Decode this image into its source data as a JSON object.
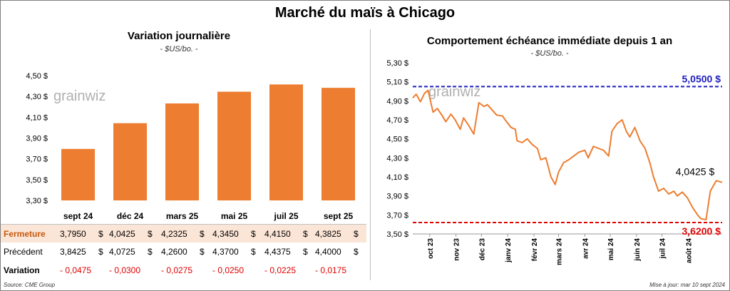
{
  "title": "Marché du maïs à Chicago",
  "left": {
    "title": "Variation journalière",
    "subtitle": "- $US/bo. -"
  },
  "right": {
    "title": "Comportement échéance immédiate depuis 1 an",
    "subtitle": "- $US/bo. -"
  },
  "watermark": "grainwiz",
  "colors": {
    "bar": "#ed7d31",
    "line": "#ed7d31",
    "high": "#1f1fbf",
    "low": "#e00000",
    "fermeture_bg": "#fbe5d6"
  },
  "table": {
    "rows": [
      {
        "label": "Fermeture",
        "values": [
          "3,7950",
          "4,0425",
          "4,2325",
          "4,3450",
          "4,4150",
          "4,3825"
        ],
        "unit": "$"
      },
      {
        "label": "Précédent",
        "values": [
          "3,8425",
          "4,0725",
          "4,2600",
          "4,3700",
          "4,4375",
          "4,4000"
        ],
        "unit": "$"
      },
      {
        "label": "Variation",
        "values": [
          "- 0,0475",
          "- 0,0300",
          "- 0,0275",
          "- 0,0250",
          "- 0,0225",
          "- 0,0175"
        ]
      }
    ]
  },
  "footer": {
    "source": "Source: CME Group",
    "updated": "Mise à jour: mar 10 sept 2024"
  },
  "chart_data": [
    {
      "type": "bar",
      "categories": [
        "sept 24",
        "déc 24",
        "mars 25",
        "mai 25",
        "juil 25",
        "sept 25"
      ],
      "values": [
        3.795,
        4.0425,
        4.2325,
        4.345,
        4.415,
        4.3825
      ],
      "ylim": [
        3.3,
        4.5
      ],
      "yticks": [
        3.3,
        3.5,
        3.7,
        3.9,
        4.1,
        4.3,
        4.5
      ],
      "ytick_labels": [
        "3,30 $",
        "3,50 $",
        "3,70 $",
        "3,90 $",
        "4,10 $",
        "4,30 $",
        "4,50 $"
      ],
      "grid": false
    },
    {
      "type": "line",
      "x": [
        "2023-09-11",
        "2023-09-15",
        "2023-09-20",
        "2023-09-25",
        "2023-09-29",
        "2023-10-05",
        "2023-10-10",
        "2023-10-16",
        "2023-10-20",
        "2023-10-26",
        "2023-10-31",
        "2023-11-06",
        "2023-11-10",
        "2023-11-16",
        "2023-11-22",
        "2023-11-28",
        "2023-12-04",
        "2023-12-08",
        "2023-12-14",
        "2023-12-19",
        "2023-12-26",
        "2023-12-29",
        "2024-01-05",
        "2024-01-10",
        "2024-01-12",
        "2024-01-18",
        "2024-01-24",
        "2024-01-30",
        "2024-02-05",
        "2024-02-09",
        "2024-02-15",
        "2024-02-21",
        "2024-02-26",
        "2024-03-01",
        "2024-03-07",
        "2024-03-13",
        "2024-03-19",
        "2024-03-25",
        "2024-04-01",
        "2024-04-05",
        "2024-04-11",
        "2024-04-17",
        "2024-04-23",
        "2024-04-29",
        "2024-05-03",
        "2024-05-09",
        "2024-05-15",
        "2024-05-20",
        "2024-05-24",
        "2024-05-30",
        "2024-06-05",
        "2024-06-11",
        "2024-06-17",
        "2024-06-21",
        "2024-06-27",
        "2024-07-03",
        "2024-07-09",
        "2024-07-15",
        "2024-07-19",
        "2024-07-25",
        "2024-07-31",
        "2024-08-06",
        "2024-08-12",
        "2024-08-16",
        "2024-08-22",
        "2024-08-27",
        "2024-09-03",
        "2024-09-10"
      ],
      "y": [
        4.93,
        4.97,
        4.89,
        4.98,
        5.01,
        4.78,
        4.82,
        4.74,
        4.68,
        4.76,
        4.7,
        4.6,
        4.72,
        4.64,
        4.55,
        4.88,
        4.84,
        4.86,
        4.8,
        4.75,
        4.74,
        4.7,
        4.62,
        4.6,
        4.48,
        4.46,
        4.5,
        4.44,
        4.4,
        4.28,
        4.3,
        4.1,
        4.02,
        4.15,
        4.25,
        4.28,
        4.32,
        4.36,
        4.38,
        4.3,
        4.42,
        4.4,
        4.38,
        4.32,
        4.58,
        4.66,
        4.7,
        4.58,
        4.52,
        4.62,
        4.48,
        4.4,
        4.24,
        4.1,
        3.95,
        3.98,
        3.92,
        3.95,
        3.9,
        3.94,
        3.88,
        3.78,
        3.7,
        3.66,
        3.65,
        3.95,
        4.06,
        4.0425
      ],
      "ylim": [
        3.5,
        5.3
      ],
      "yticks": [
        3.5,
        3.7,
        3.9,
        4.1,
        4.3,
        4.5,
        4.7,
        4.9,
        5.1,
        5.3
      ],
      "ytick_labels": [
        "3,50 $",
        "3,70 $",
        "3,90 $",
        "4,10 $",
        "4,30 $",
        "4,50 $",
        "4,70 $",
        "4,90 $",
        "5,10 $",
        "5,30 $"
      ],
      "xticks": [
        "oct 23",
        "nov 23",
        "déc 23",
        "janv 24",
        "févr 24",
        "mars 24",
        "avr 24",
        "mai 24",
        "juin 24",
        "juil 24",
        "août 24"
      ],
      "hlines": [
        {
          "value": 5.05,
          "label": "5,0500 $",
          "color": "#1f1fbf"
        },
        {
          "value": 3.62,
          "label": "3,6200 $",
          "color": "#e00000"
        }
      ],
      "last_label": "4,0425 $",
      "grid": false
    }
  ]
}
